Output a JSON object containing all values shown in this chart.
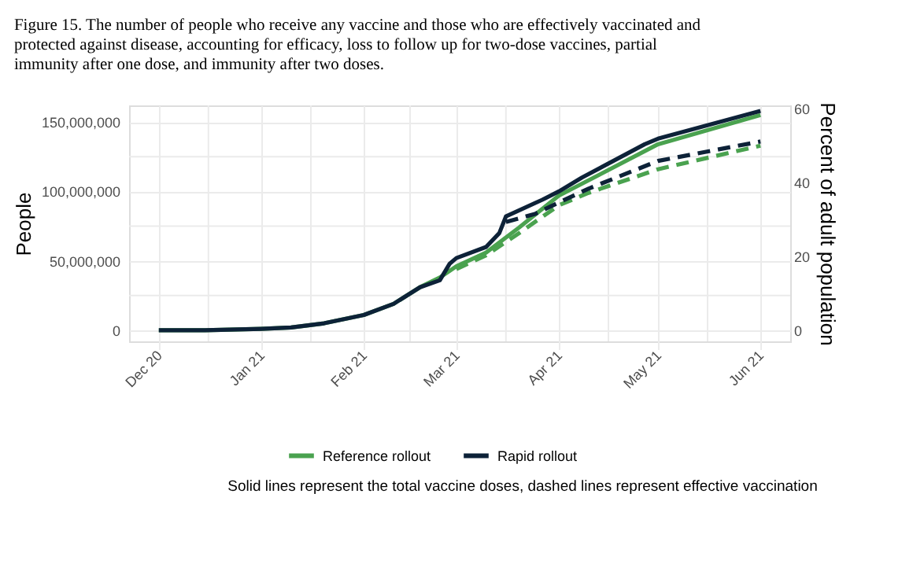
{
  "chart_data": {
    "type": "line",
    "title": "Figure 15. The number of people who receive any vaccine and those who are effectively vaccinated and protected against disease, accounting for efficacy, loss to follow up for two-dose vaccines, partial immunity after one dose, and immunity after two doses.",
    "ylabel": "People",
    "y2label": "Percent of adult population",
    "series": [
      {
        "name": "Reference rollout",
        "color": "#4aa24f",
        "line_style": "solid",
        "x": [
          "2020-12-01",
          "2020-12-15",
          "2021-01-01",
          "2021-01-10",
          "2021-01-20",
          "2021-02-01",
          "2021-02-10",
          "2021-02-18",
          "2021-02-24",
          "2021-03-01",
          "2021-03-10",
          "2021-03-20",
          "2021-04-01",
          "2021-04-10",
          "2021-05-01",
          "2021-06-01"
        ],
        "values": [
          0,
          0,
          1000000,
          2000000,
          5000000,
          11000000,
          19000000,
          31000000,
          38000000,
          46000000,
          56000000,
          74000000,
          97000000,
          108000000,
          134000000,
          155000000
        ]
      },
      {
        "name": "Rapid rollout",
        "color": "#0d2238",
        "line_style": "solid",
        "x": [
          "2020-12-01",
          "2020-12-15",
          "2021-01-01",
          "2021-01-10",
          "2021-01-20",
          "2021-02-01",
          "2021-02-10",
          "2021-02-18",
          "2021-02-24",
          "2021-02-27",
          "2021-03-01",
          "2021-03-10",
          "2021-03-14",
          "2021-03-16",
          "2021-03-27",
          "2021-04-01",
          "2021-04-08",
          "2021-04-27",
          "2021-05-01",
          "2021-06-01"
        ],
        "values": [
          0,
          0,
          1000000,
          2000000,
          5000000,
          11000000,
          19000000,
          31000000,
          36000000,
          48000000,
          52000000,
          60000000,
          70000000,
          82000000,
          94000000,
          100000000,
          110000000,
          134000000,
          138000000,
          158000000
        ]
      },
      {
        "color": "#4aa24f",
        "line_style": "dashed",
        "x": [
          "2021-03-01",
          "2021-03-10",
          "2021-03-20",
          "2021-04-01",
          "2021-04-10",
          "2021-05-01",
          "2021-06-01"
        ],
        "values": [
          44000000,
          54000000,
          70000000,
          90000000,
          99000000,
          116000000,
          133000000
        ]
      },
      {
        "color": "#0d2238",
        "line_style": "dashed",
        "x": [
          "2021-03-16",
          "2021-03-25",
          "2021-04-01",
          "2021-04-10",
          "2021-05-01",
          "2021-06-01"
        ],
        "values": [
          78000000,
          84000000,
          92000000,
          102000000,
          122000000,
          136000000
        ]
      }
    ],
    "xlim": [
      "2020-11-22",
      "2021-06-10"
    ],
    "xticks": [
      {
        "value": "2020-12-01",
        "label": "Dec 20"
      },
      {
        "value": "2020-12-16",
        "label": null
      },
      {
        "value": "2021-01-01",
        "label": "Jan 21"
      },
      {
        "value": "2021-01-16",
        "label": null
      },
      {
        "value": "2021-02-01",
        "label": "Feb 21"
      },
      {
        "value": "2021-02-15",
        "label": null
      },
      {
        "value": "2021-03-01",
        "label": "Mar 21"
      },
      {
        "value": "2021-03-16",
        "label": null
      },
      {
        "value": "2021-04-01",
        "label": "Apr 21"
      },
      {
        "value": "2021-04-16",
        "label": null
      },
      {
        "value": "2021-05-01",
        "label": "May 21"
      },
      {
        "value": "2021-05-16",
        "label": null
      },
      {
        "value": "2021-06-01",
        "label": "Jun 21"
      }
    ],
    "ylim": [
      -8000000,
      162000000
    ],
    "yticks": [
      0,
      {
        "value": 25000000,
        "label": null
      },
      {
        "value": 50000000,
        "label": "50,000,000"
      },
      {
        "value": 75000000,
        "label": null
      },
      {
        "value": 100000000,
        "label": "100,000,000"
      },
      {
        "value": 125000000,
        "label": null
      },
      {
        "value": 150000000,
        "label": "150,000,000"
      }
    ],
    "y2lim": [
      -3.0,
      60.9
    ],
    "y2ticks": [
      0,
      20,
      40,
      60
    ],
    "grid": true,
    "legend": "bottom",
    "marker": "none",
    "annotations": [
      "Solid lines represent the total vaccine doses, dashed lines represent effective vaccination"
    ]
  }
}
